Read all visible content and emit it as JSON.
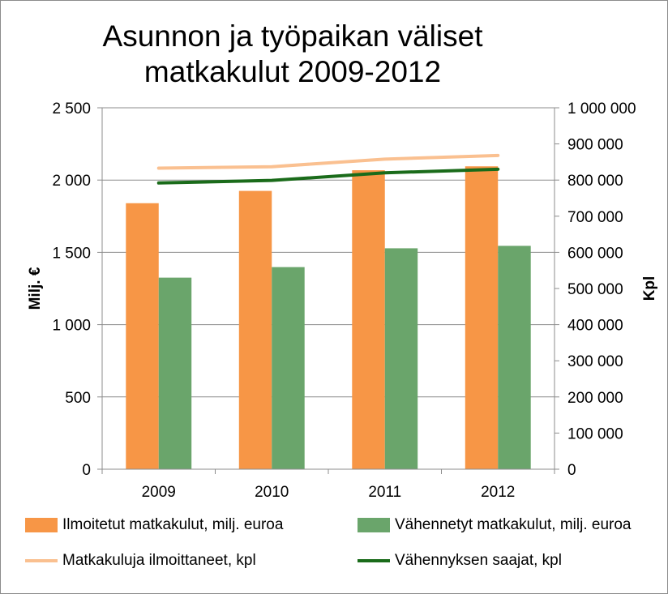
{
  "chart_data": {
    "type": "bar",
    "title_line1": "Asunnon ja työpaikan väliset",
    "title_line2": "matkakulut 2009-2012",
    "categories": [
      "2009",
      "2010",
      "2011",
      "2012"
    ],
    "y_left": {
      "label": "Milj.  €",
      "ylim": [
        0,
        2500
      ],
      "ticks": [
        0,
        500,
        1000,
        1500,
        2000,
        2500
      ],
      "tick_labels": [
        "0",
        "500",
        "1 000",
        "1 500",
        "2 000",
        "2 500"
      ]
    },
    "y_right": {
      "label": "Kpl",
      "ylim": [
        0,
        1000000
      ],
      "ticks": [
        0,
        100000,
        200000,
        300000,
        400000,
        500000,
        600000,
        700000,
        800000,
        900000,
        1000000
      ],
      "tick_labels": [
        "0",
        "100 000",
        "200 000",
        "300 000",
        "400 000",
        "500 000",
        "600 000",
        "700 000",
        "800 000",
        "900 000",
        "1 000 000"
      ]
    },
    "grid": true,
    "legend_position": "bottom",
    "series": [
      {
        "name": "Ilmoitetut matkakulut, milj. euroa",
        "kind": "bar",
        "axis": "left",
        "color": "#F79646",
        "values": [
          1840,
          1925,
          2068,
          2095
        ]
      },
      {
        "name": "Vähennetyt matkakulut, milj. euroa",
        "kind": "bar",
        "axis": "left",
        "color": "#6AA56B",
        "values": [
          1325,
          1398,
          1528,
          1545
        ]
      },
      {
        "name": "Matkakuluja ilmoittaneet, kpl",
        "kind": "line",
        "axis": "right",
        "color": "#FAC090",
        "values": [
          833000,
          837000,
          858000,
          868000
        ]
      },
      {
        "name": "Vähennyksen saajat, kpl",
        "kind": "line",
        "axis": "right",
        "color": "#1A6B1A",
        "values": [
          792000,
          799000,
          820000,
          830000
        ]
      }
    ]
  }
}
